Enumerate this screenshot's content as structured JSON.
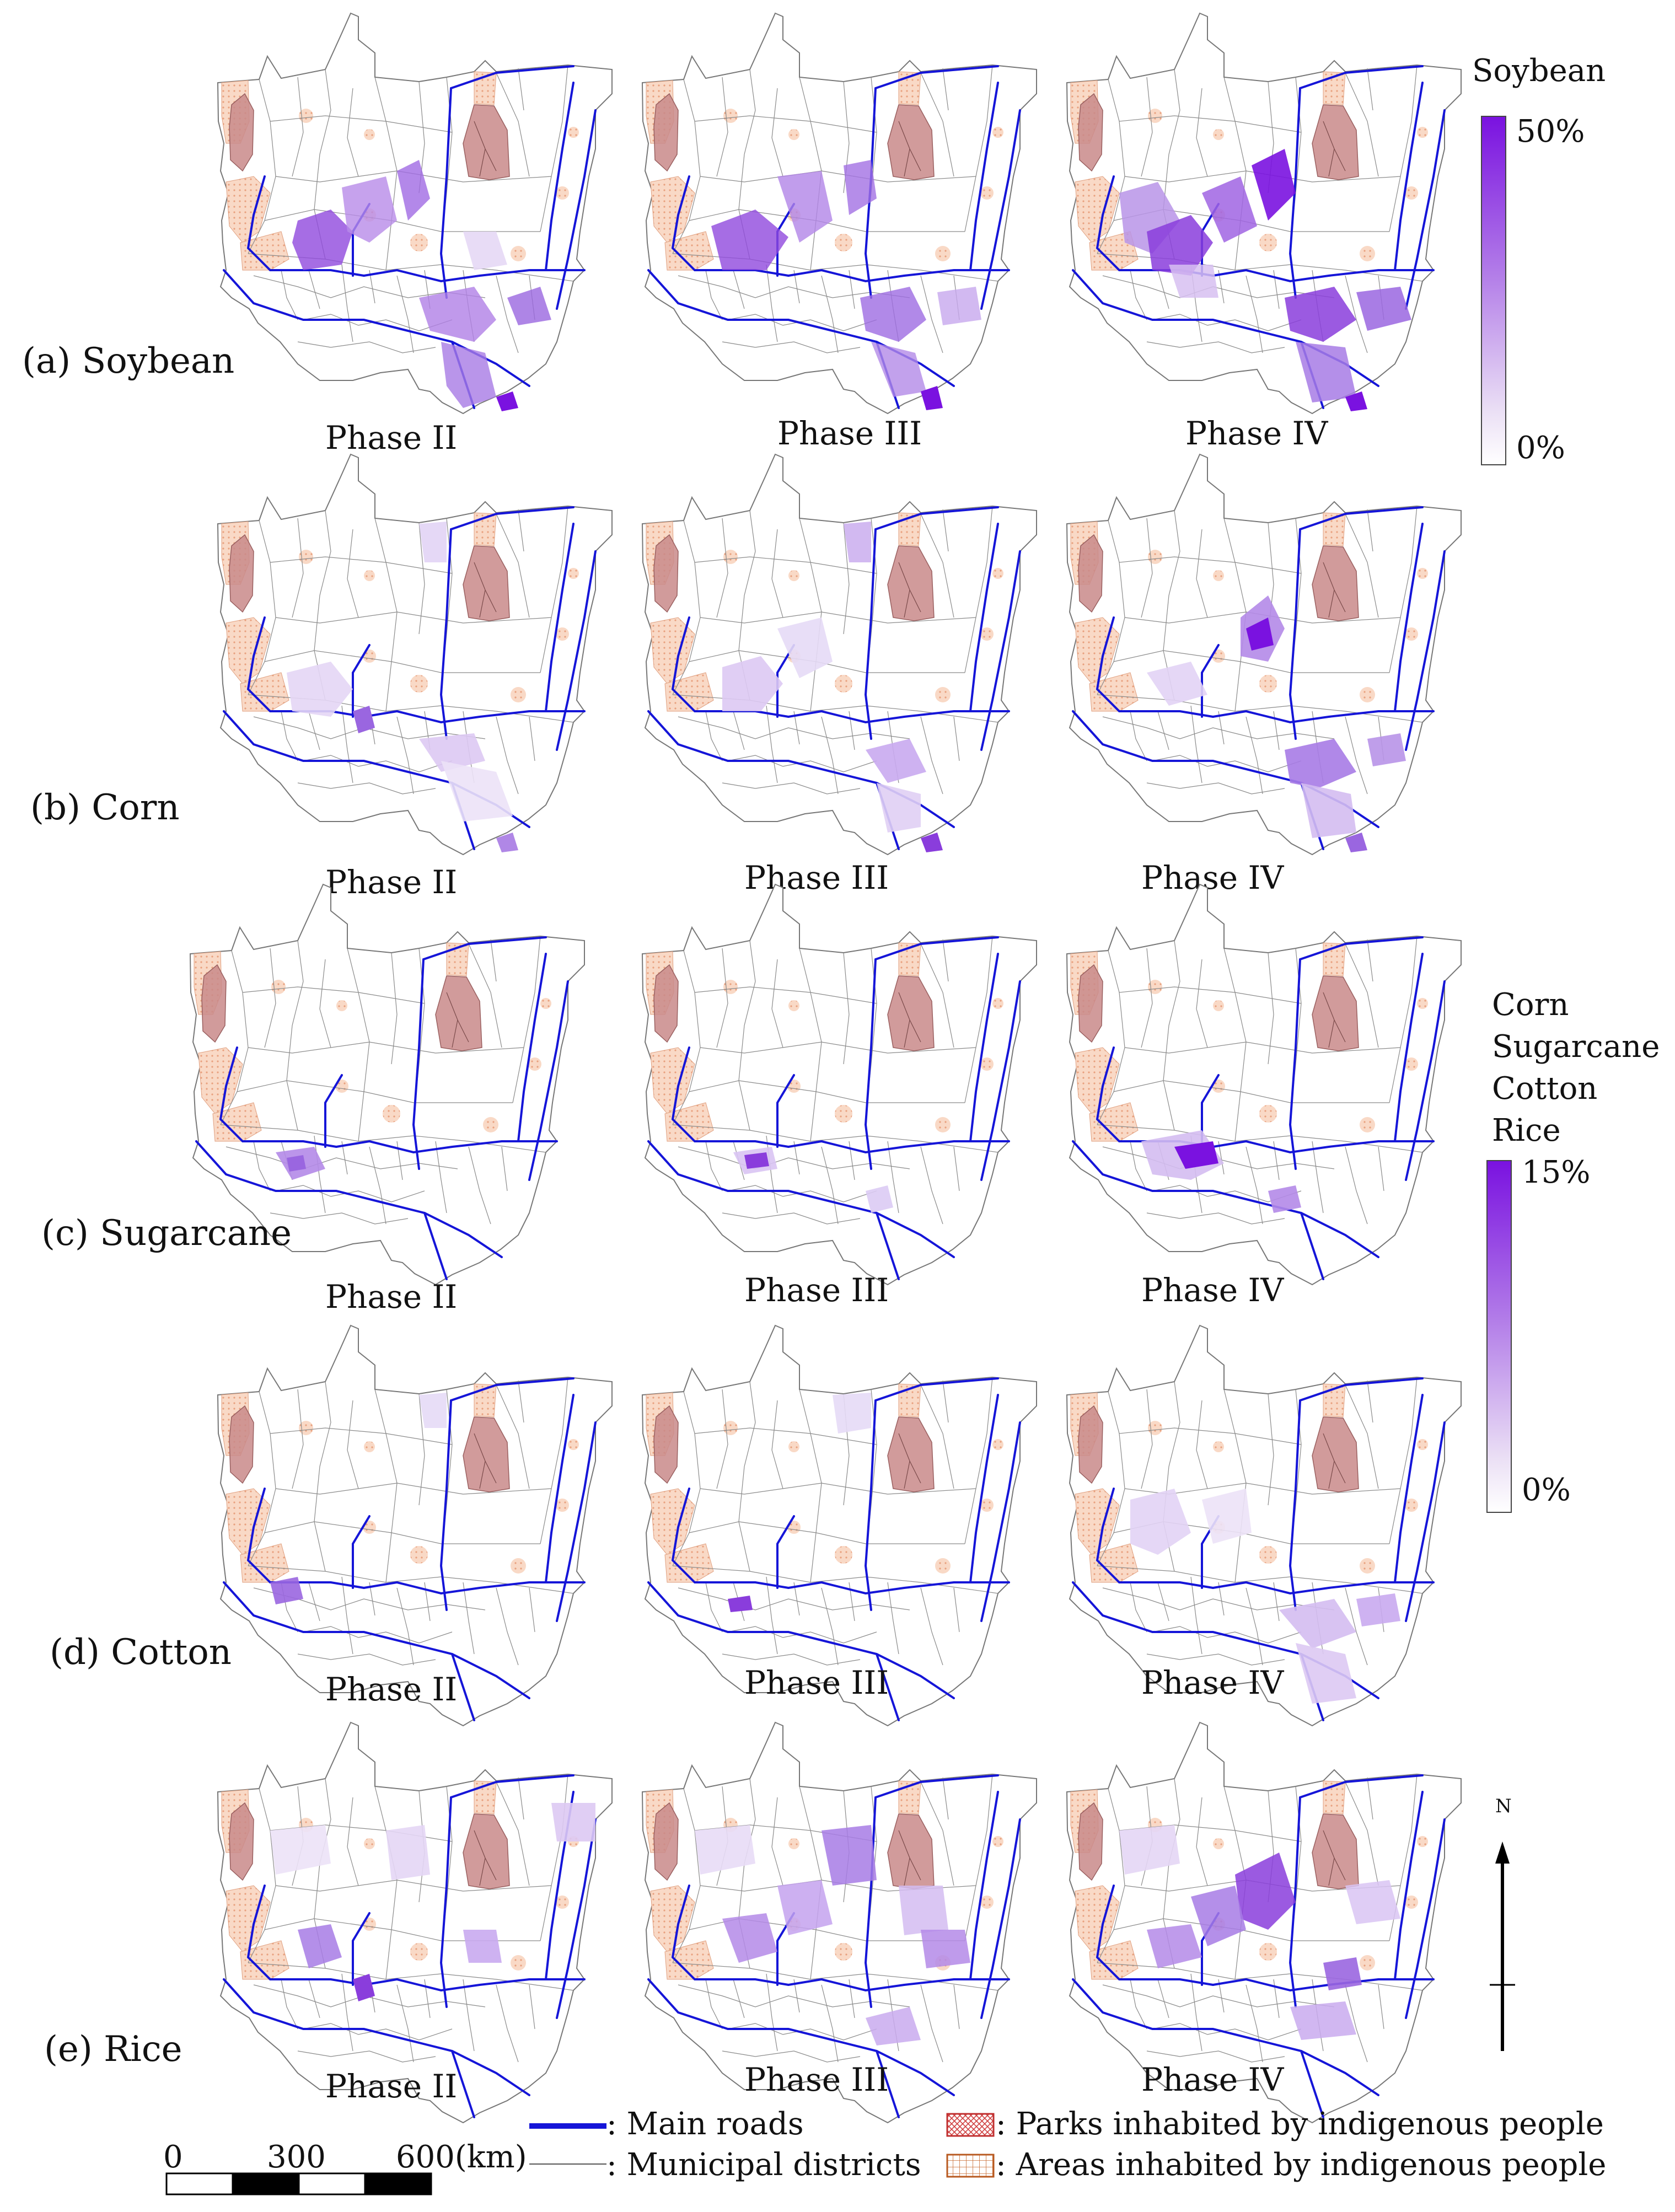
{
  "rows": [
    {
      "label": "(a) Soybean",
      "phases": [
        "Phase II",
        "Phase III",
        "Phase IV"
      ]
    },
    {
      "label": "(b) Corn",
      "phases": [
        "Phase II",
        "Phase III",
        "Phase IV"
      ]
    },
    {
      "label": "(c) Sugarcane",
      "phases": [
        "Phase II",
        "Phase III",
        "Phase IV"
      ]
    },
    {
      "label": "(d) Cotton",
      "phases": [
        "Phase II",
        "Phase III",
        "Phase IV"
      ]
    },
    {
      "label": "(e) Rice",
      "phases": [
        "Phase II",
        "Phase III",
        "Phase IV"
      ]
    }
  ],
  "legend_soybean": {
    "title": "Soybean",
    "max": "50%",
    "min": "0%"
  },
  "legend_others": {
    "titles": [
      "Corn",
      "Sugarcane",
      "Cotton",
      "Rice"
    ],
    "max": "15%",
    "min": "0%"
  },
  "north_label": "N",
  "scale_bar": {
    "labels": [
      "0",
      "300",
      "600(km)"
    ]
  },
  "map_legend": {
    "main_roads": ": Main roads",
    "municipal": ": Municipal districts",
    "parks": ": Parks inhabited by indigenous people",
    "areas": ": Areas inhabited by indigenous people"
  },
  "colors": {
    "road": "#1515d8",
    "boundary": "#8a8a8a",
    "indigenous_park": "#c98a8a",
    "indigenous_area": "#f7cdb5",
    "crop_high": "#7a12e0",
    "crop_low": "#ebe0f5"
  }
}
